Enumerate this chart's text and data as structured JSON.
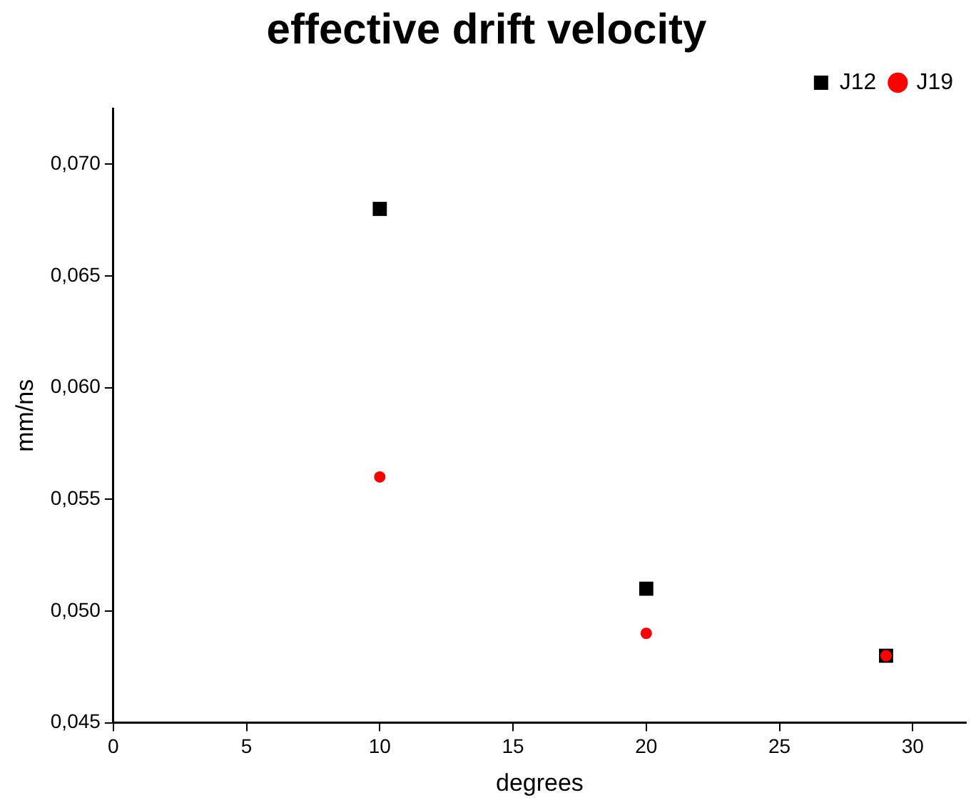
{
  "chart_data": {
    "type": "scatter",
    "title": "effective drift velocity",
    "xlabel": "degrees",
    "ylabel": "mm/ns",
    "series": [
      {
        "name": "J12",
        "color": "#000000",
        "marker": "square",
        "x": [
          10,
          20,
          29
        ],
        "values": [
          0.068,
          0.051,
          0.048
        ]
      },
      {
        "name": "J19",
        "color": "#ff0000",
        "marker": "circle",
        "x": [
          10,
          20,
          29
        ],
        "values": [
          0.056,
          0.049,
          0.048
        ]
      }
    ],
    "xlim": [
      0,
      32
    ],
    "xticks": [
      0,
      5,
      10,
      15,
      20,
      25,
      30
    ],
    "ylim": [
      0.045,
      0.0725
    ],
    "yticks": [
      {
        "value": 0.045,
        "label": "0,045"
      },
      {
        "value": 0.05,
        "label": "0,050"
      },
      {
        "value": 0.055,
        "label": "0,055"
      },
      {
        "value": 0.06,
        "label": "0,060"
      },
      {
        "value": 0.065,
        "label": "0,065"
      },
      {
        "value": 0.07,
        "label": "0,070"
      }
    ],
    "grid": false,
    "legend": "top right"
  }
}
